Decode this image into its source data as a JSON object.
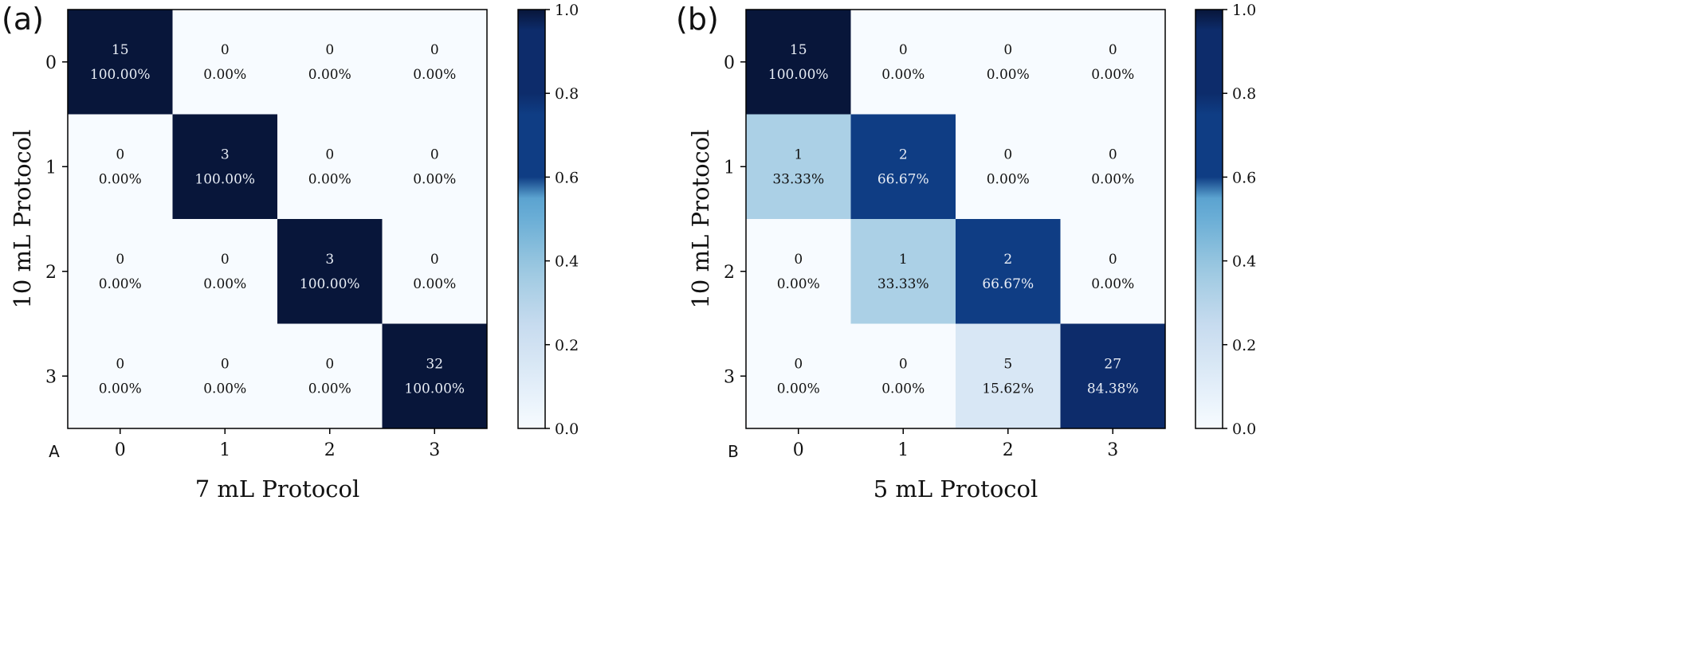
{
  "chart_data": [
    {
      "type": "heatmap",
      "panel_label": "(a)",
      "corner_label": "A",
      "xlabel": "7 mL Protocol",
      "ylabel": "10 mL Protocol",
      "x_categories": [
        "0",
        "1",
        "2",
        "3"
      ],
      "y_categories": [
        "0",
        "1",
        "2",
        "3"
      ],
      "counts": [
        [
          15,
          0,
          0,
          0
        ],
        [
          0,
          3,
          0,
          0
        ],
        [
          0,
          0,
          3,
          0
        ],
        [
          0,
          0,
          0,
          32
        ]
      ],
      "percent_labels": [
        [
          "100.00%",
          "0.00%",
          "0.00%",
          "0.00%"
        ],
        [
          "0.00%",
          "100.00%",
          "0.00%",
          "0.00%"
        ],
        [
          "0.00%",
          "0.00%",
          "100.00%",
          "0.00%"
        ],
        [
          "0.00%",
          "0.00%",
          "0.00%",
          "100.00%"
        ]
      ],
      "values": [
        [
          1.0,
          0,
          0,
          0
        ],
        [
          0,
          1.0,
          0,
          0
        ],
        [
          0,
          0,
          1.0,
          0
        ],
        [
          0,
          0,
          0,
          1.0
        ]
      ],
      "colorbar": {
        "min": 0.0,
        "max": 1.0,
        "ticks": [
          "0.0",
          "0.2",
          "0.4",
          "0.6",
          "0.8",
          "1.0"
        ],
        "colormap": "Blues"
      }
    },
    {
      "type": "heatmap",
      "panel_label": "(b)",
      "corner_label": "B",
      "xlabel": "5 mL Protocol",
      "ylabel": "10 mL Protocol",
      "x_categories": [
        "0",
        "1",
        "2",
        "3"
      ],
      "y_categories": [
        "0",
        "1",
        "2",
        "3"
      ],
      "counts": [
        [
          15,
          0,
          0,
          0
        ],
        [
          1,
          2,
          0,
          0
        ],
        [
          0,
          1,
          2,
          0
        ],
        [
          0,
          0,
          5,
          27
        ]
      ],
      "percent_labels": [
        [
          "100.00%",
          "0.00%",
          "0.00%",
          "0.00%"
        ],
        [
          "33.33%",
          "66.67%",
          "0.00%",
          "0.00%"
        ],
        [
          "0.00%",
          "33.33%",
          "66.67%",
          "0.00%"
        ],
        [
          "0.00%",
          "0.00%",
          "15.62%",
          "84.38%"
        ]
      ],
      "values": [
        [
          1.0,
          0,
          0,
          0
        ],
        [
          0.3333,
          0.6667,
          0,
          0
        ],
        [
          0,
          0.3333,
          0.6667,
          0
        ],
        [
          0,
          0,
          0.1562,
          0.8438
        ]
      ],
      "colorbar": {
        "min": 0.0,
        "max": 1.0,
        "ticks": [
          "0.0",
          "0.2",
          "0.4",
          "0.6",
          "0.8",
          "1.0"
        ],
        "colormap": "Blues"
      }
    }
  ]
}
